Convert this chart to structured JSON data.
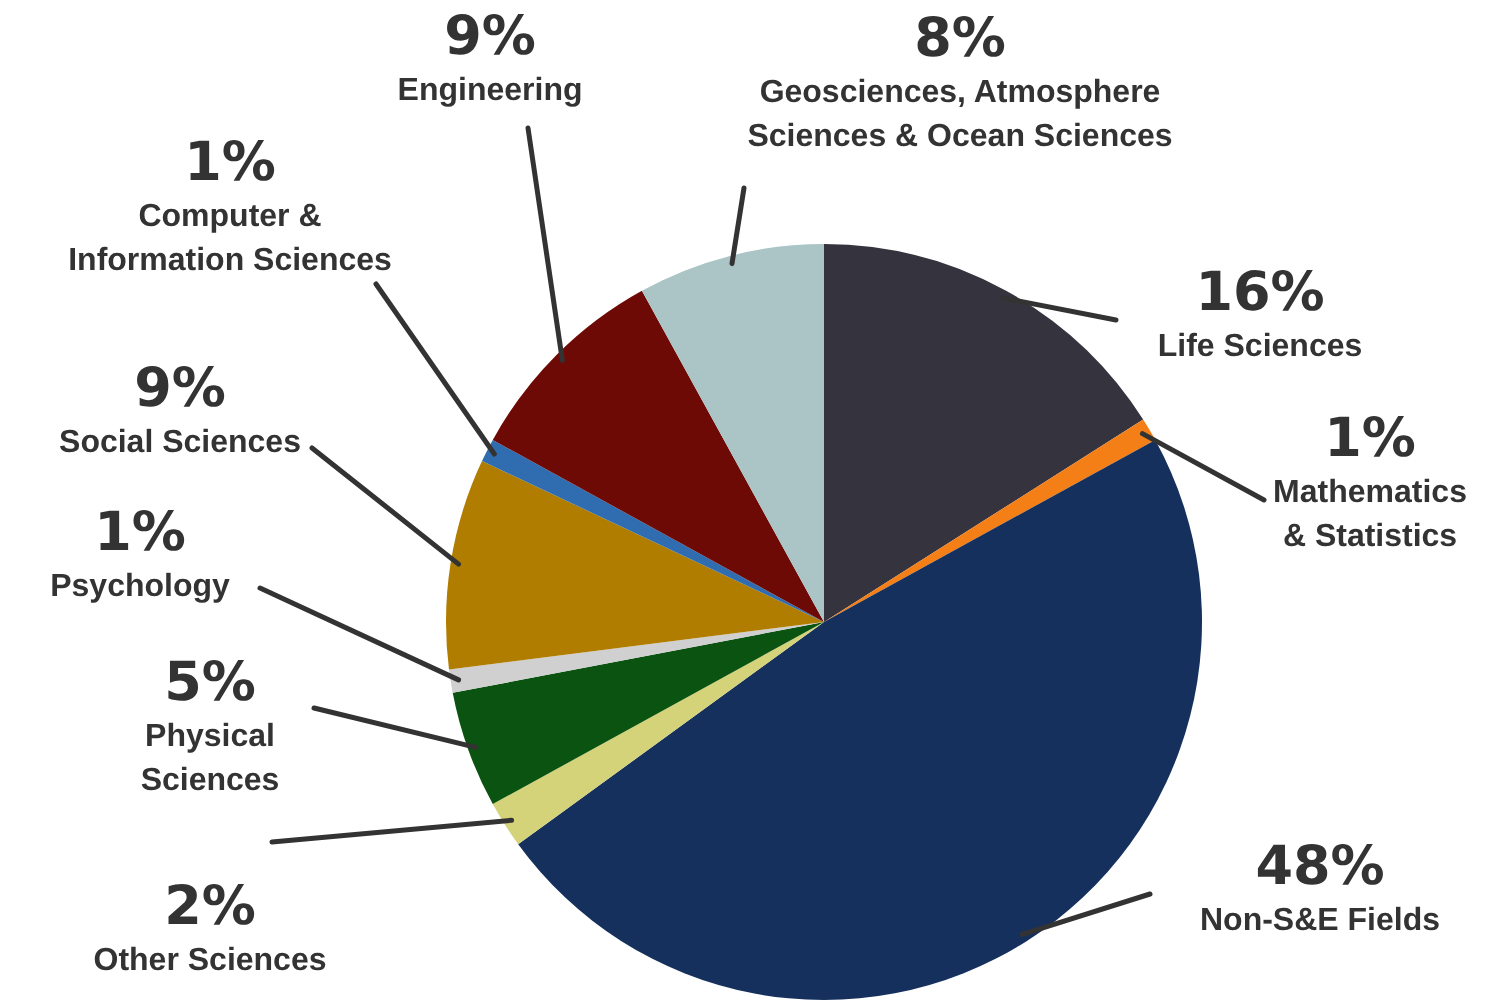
{
  "chart_data": {
    "type": "pie",
    "categories": [
      "Life Sciences",
      "Mathematics & Statistics",
      "Non-S&E Fields",
      "Other Sciences",
      "Physical Sciences",
      "Psychology",
      "Social Sciences",
      "Computer & Information Sciences",
      "Engineering",
      "Geosciences, Atmosphere Sciences & Ocean Sciences"
    ],
    "values": [
      16,
      1,
      48,
      2,
      5,
      1,
      9,
      1,
      9,
      8
    ],
    "value_labels": [
      "16%",
      "1%",
      "48%",
      "2%",
      "5%",
      "1%",
      "9%",
      "1%",
      "9%",
      "8%"
    ],
    "colors": [
      "#35333d",
      "#f57f17",
      "#15305c",
      "#d4d37a",
      "#0b5310",
      "#d0d0d0",
      "#b07d00",
      "#2f6db0",
      "#6e0a05",
      "#abc4c5"
    ]
  }
}
